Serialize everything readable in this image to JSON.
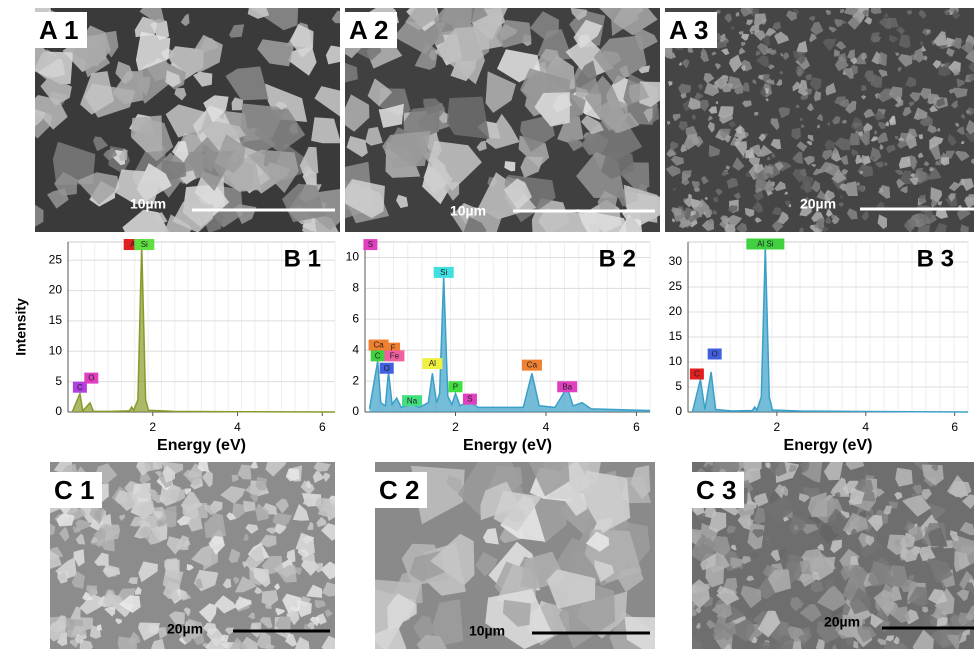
{
  "panels": [
    {
      "label": "A 1",
      "scale": "10µm"
    },
    {
      "label": "A 2",
      "scale": "10µm"
    },
    {
      "label": "A 3",
      "scale": "20µm"
    },
    {
      "label": "C 1",
      "scale": "20µm"
    },
    {
      "label": "C 2",
      "scale": "10µm"
    },
    {
      "label": "C 3",
      "scale": "20µm"
    }
  ],
  "chart_data": [
    {
      "type": "line",
      "title": "B 1",
      "xlabel": "Energy  (eV)",
      "ylabel": "Intensity",
      "color": "#8a9a2a",
      "grid": true,
      "xlim": [
        0,
        6.3
      ],
      "ylim": [
        0,
        28
      ],
      "xticks": [
        2,
        4,
        6
      ],
      "yticks": [
        0,
        5,
        10,
        15,
        20,
        25
      ],
      "x": [
        0.1,
        0.28,
        0.35,
        0.52,
        0.6,
        1.0,
        1.45,
        1.5,
        1.55,
        1.65,
        1.74,
        1.83,
        1.9,
        2.5,
        4,
        6.3
      ],
      "values": [
        0,
        3,
        0.2,
        1.5,
        0.1,
        0.1,
        0.2,
        0.8,
        0.3,
        2,
        27.5,
        2,
        0.3,
        0.1,
        0.05,
        0
      ],
      "annotations": [
        {
          "text": "C",
          "x": 0.28,
          "y": 4,
          "color": "#b040e0"
        },
        {
          "text": "O",
          "x": 0.55,
          "y": 5.5,
          "color": "#e040c0"
        },
        {
          "text": "Al",
          "x": 1.55,
          "y": 27.5,
          "color": "#e02020"
        },
        {
          "text": "Si",
          "x": 1.8,
          "y": 27.5,
          "color": "#60e040"
        }
      ]
    },
    {
      "type": "line",
      "title": "B 2",
      "xlabel": "Energy  (eV)",
      "color": "#3aa0c8",
      "grid": true,
      "xlim": [
        0,
        6.3
      ],
      "ylim": [
        0,
        11
      ],
      "xticks": [
        2,
        4,
        6
      ],
      "yticks": [
        0,
        2,
        4,
        6,
        8,
        10
      ],
      "x": [
        0.1,
        0.28,
        0.35,
        0.45,
        0.52,
        0.6,
        0.7,
        0.8,
        1.04,
        1.2,
        1.4,
        1.49,
        1.58,
        1.65,
        1.74,
        1.83,
        1.92,
        2.0,
        2.1,
        2.3,
        2.5,
        3.5,
        3.69,
        3.85,
        4.2,
        4.47,
        4.6,
        4.8,
        5.0,
        6.3
      ],
      "values": [
        0.2,
        3.3,
        0.6,
        0.4,
        2.6,
        0.5,
        0.9,
        0.3,
        0.5,
        0.3,
        0.6,
        2.5,
        0.6,
        1.2,
        8.8,
        1.0,
        0.5,
        1.2,
        0.4,
        0.7,
        0.3,
        0.3,
        2.5,
        0.4,
        0.3,
        1.6,
        0.4,
        0.6,
        0.2,
        0.1
      ],
      "annotations": [
        {
          "text": "S",
          "x": 0.12,
          "y": 10.8,
          "color": "#e040c0"
        },
        {
          "text": "Ca",
          "x": 0.3,
          "y": 4.3,
          "color": "#f08030"
        },
        {
          "text": "F",
          "x": 0.62,
          "y": 4.1,
          "color": "#f08030"
        },
        {
          "text": "C",
          "x": 0.28,
          "y": 3.6,
          "color": "#40d040"
        },
        {
          "text": "Fe",
          "x": 0.65,
          "y": 3.6,
          "color": "#f060a0"
        },
        {
          "text": "O",
          "x": 0.48,
          "y": 2.8,
          "color": "#4060e0"
        },
        {
          "text": "Na",
          "x": 1.04,
          "y": 0.7,
          "color": "#40e080"
        },
        {
          "text": "Al",
          "x": 1.49,
          "y": 3.1,
          "color": "#f0f040"
        },
        {
          "text": "Si",
          "x": 1.74,
          "y": 9.0,
          "color": "#40e0e0"
        },
        {
          "text": "P",
          "x": 2.0,
          "y": 1.6,
          "color": "#40e040"
        },
        {
          "text": "S",
          "x": 2.32,
          "y": 0.8,
          "color": "#e040c0"
        },
        {
          "text": "Ca",
          "x": 3.69,
          "y": 3.0,
          "color": "#f08030"
        },
        {
          "text": "Ba",
          "x": 4.47,
          "y": 1.6,
          "color": "#e040c0"
        }
      ]
    },
    {
      "type": "line",
      "title": "B 3",
      "xlabel": "Energy  (eV)",
      "color": "#3aa0c8",
      "grid": true,
      "xlim": [
        0,
        6.3
      ],
      "ylim": [
        0,
        34
      ],
      "xticks": [
        2,
        4,
        6
      ],
      "yticks": [
        0,
        5,
        10,
        15,
        20,
        25,
        30
      ],
      "x": [
        0.1,
        0.28,
        0.38,
        0.52,
        0.62,
        1.0,
        1.45,
        1.5,
        1.55,
        1.65,
        1.74,
        1.83,
        1.9,
        2.5,
        4,
        6.3
      ],
      "values": [
        0,
        6.5,
        0.5,
        8,
        0.5,
        0.2,
        0.3,
        1,
        0.4,
        3,
        33,
        3,
        0.4,
        0.2,
        0.1,
        0
      ],
      "annotations": [
        {
          "text": "C",
          "x": 0.2,
          "y": 7.5,
          "color": "#e02020"
        },
        {
          "text": "O",
          "x": 0.6,
          "y": 11.5,
          "color": "#4060e0"
        },
        {
          "text": "Al Si",
          "x": 1.74,
          "y": 33.5,
          "color": "#40d040"
        }
      ]
    }
  ]
}
